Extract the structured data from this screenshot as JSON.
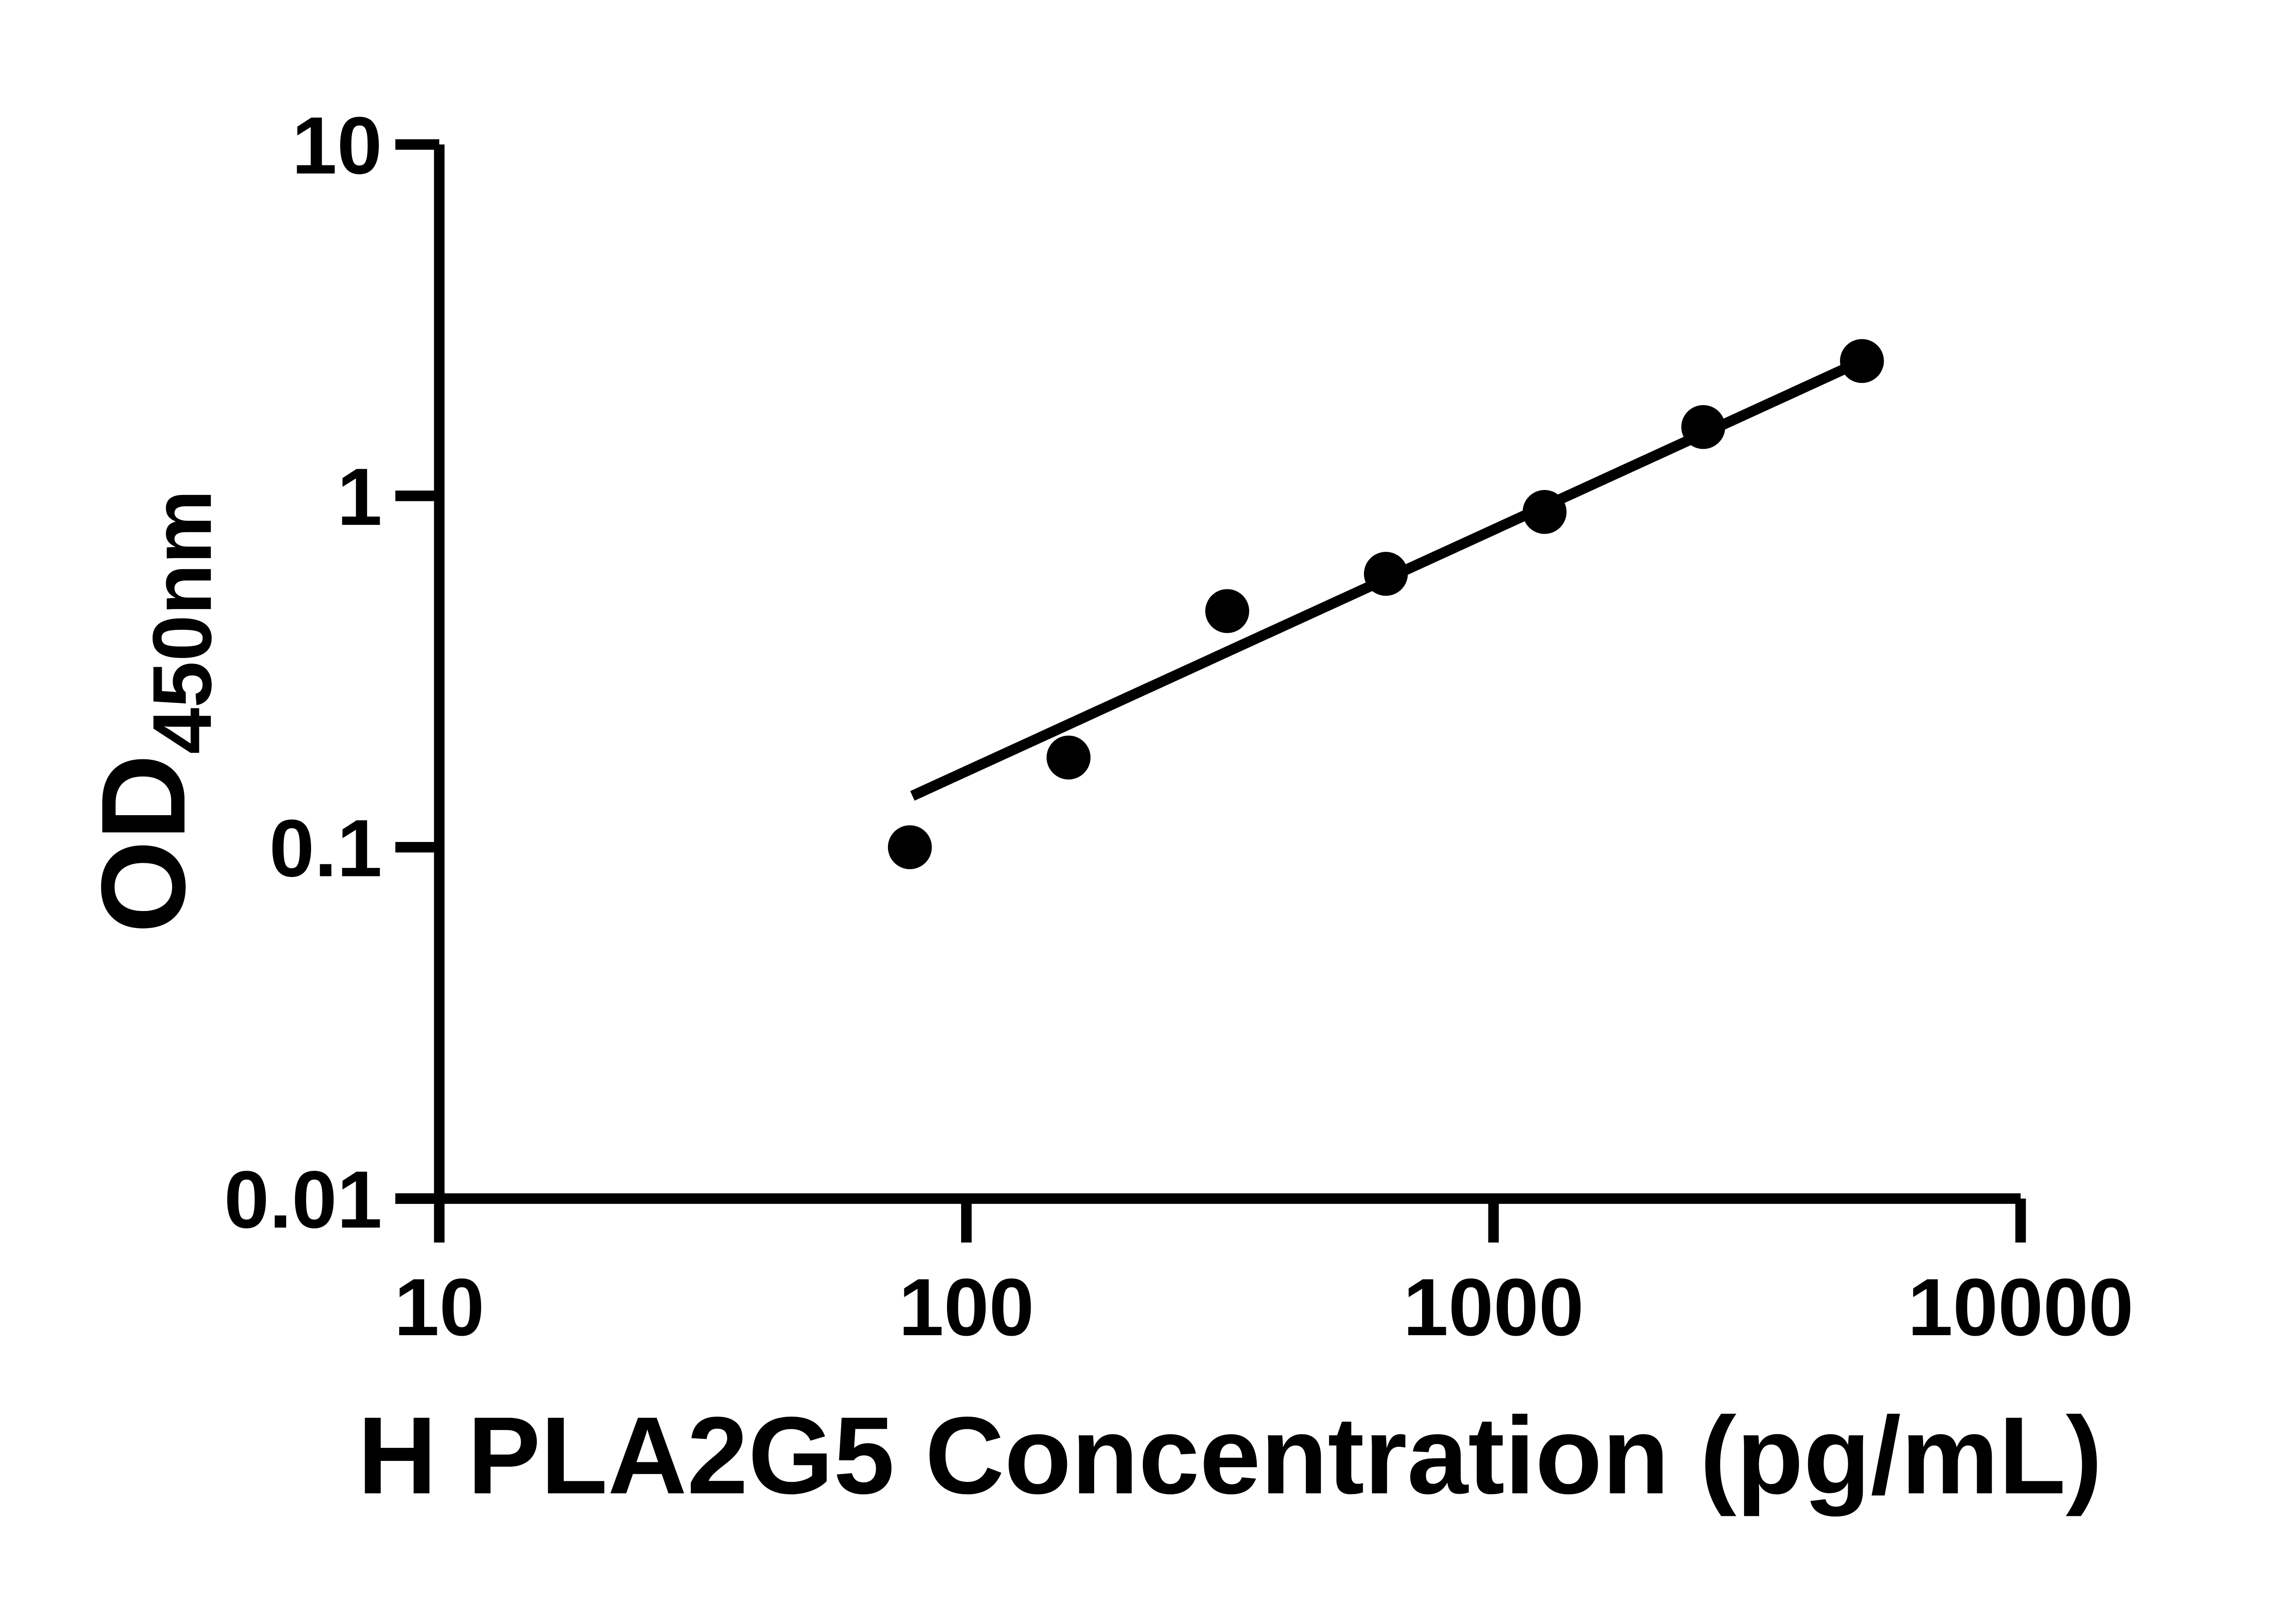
{
  "chart_data": {
    "type": "scatter",
    "title": "",
    "xlabel": "H PLA2G5 Concentration (pg/mL)",
    "ylabel_main": "OD",
    "ylabel_sub": "450nm",
    "x_scale": "log",
    "y_scale": "log",
    "xlim": [
      10,
      10000
    ],
    "ylim": [
      0.01,
      10
    ],
    "x_tick_values": [
      10,
      100,
      1000,
      10000
    ],
    "x_tick_labels": [
      "10",
      "100",
      "1000",
      "10000"
    ],
    "y_tick_values": [
      10,
      1,
      0.1,
      0.01
    ],
    "y_tick_labels": [
      "10",
      "1",
      "0.1",
      "0.01"
    ],
    "grid": false,
    "legend": false,
    "background_color": "#ffffff",
    "axis_color": "#000000",
    "marker_color": "#000000",
    "trend_line_color": "#000000",
    "points": [
      {
        "x": 78.125,
        "od": 0.1
      },
      {
        "x": 156.25,
        "od": 0.18
      },
      {
        "x": 312.5,
        "od": 0.47
      },
      {
        "x": 625,
        "od": 0.6
      },
      {
        "x": 1250,
        "od": 0.9
      },
      {
        "x": 2500,
        "od": 1.57
      },
      {
        "x": 5000,
        "od": 2.42
      }
    ],
    "trend_line": {
      "x1": 79,
      "y1": 0.14,
      "x2": 5000,
      "y2": 2.42
    }
  }
}
